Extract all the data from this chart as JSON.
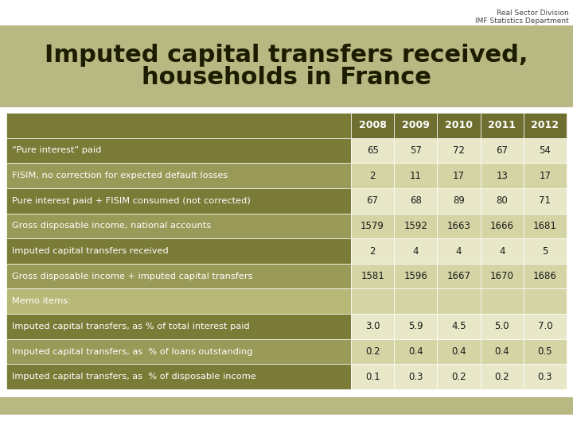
{
  "title_line1": "Imputed capital transfers received,",
  "title_line2": "households in France",
  "header_right_line1": "Real Sector Division",
  "header_right_line2": "IMF Statistics Department",
  "columns": [
    "2008",
    "2009",
    "2010",
    "2011",
    "2012"
  ],
  "rows": [
    {
      "label": "“Pure interest” paid",
      "values": [
        "65",
        "57",
        "72",
        "67",
        "54"
      ],
      "row_type": "data_dark"
    },
    {
      "label": "FISIM, no correction for expected default losses",
      "values": [
        "2",
        "11",
        "17",
        "13",
        "17"
      ],
      "row_type": "data_light"
    },
    {
      "label": "Pure interest paid + FISIM consumed (not corrected)",
      "values": [
        "67",
        "68",
        "89",
        "80",
        "71"
      ],
      "row_type": "data_dark"
    },
    {
      "label": "Gross disposable income, national accounts",
      "values": [
        "1579",
        "1592",
        "1663",
        "1666",
        "1681"
      ],
      "row_type": "data_light"
    },
    {
      "label": "Imputed capital transfers received",
      "values": [
        "2",
        "4",
        "4",
        "4",
        "5"
      ],
      "row_type": "data_dark"
    },
    {
      "label": "Gross disposable income + imputed capital transfers",
      "values": [
        "1581",
        "1596",
        "1667",
        "1670",
        "1686"
      ],
      "row_type": "data_light"
    },
    {
      "label": "Memo items:",
      "values": [
        "",
        "",
        "",
        "",
        ""
      ],
      "row_type": "memo"
    },
    {
      "label": "Imputed capital transfers, as % of total interest paid",
      "values": [
        "3.0",
        "5.9",
        "4.5",
        "5.0",
        "7.0"
      ],
      "row_type": "data_dark2"
    },
    {
      "label": "Imputed capital transfers, as  % of loans outstanding",
      "values": [
        "0.2",
        "0.4",
        "0.4",
        "0.4",
        "0.5"
      ],
      "row_type": "data_light2"
    },
    {
      "label": "Imputed capital transfers, as  % of disposable income",
      "values": [
        "0.1",
        "0.3",
        "0.2",
        "0.2",
        "0.3"
      ],
      "row_type": "data_dark2"
    }
  ],
  "color_header_row": "#6e6e30",
  "color_data_dark": "#7b7b38",
  "color_data_light": "#999958",
  "color_memo": "#b8b878",
  "color_data_dark2": "#7b7b38",
  "color_data_light2": "#999958",
  "color_title_bg": "#b8b882",
  "color_number_dark": "#e8e8c8",
  "color_number_light": "#d4d4a4",
  "color_number_memo": "#d4d4a4",
  "color_white_text": "#ffffff",
  "color_dark_text": "#1c1c00",
  "color_number_text": "#1a1a1a",
  "bg_color": "#ffffff",
  "bottom_bar_color": "#b8b882",
  "logo_area_color": "#d8d8c0"
}
